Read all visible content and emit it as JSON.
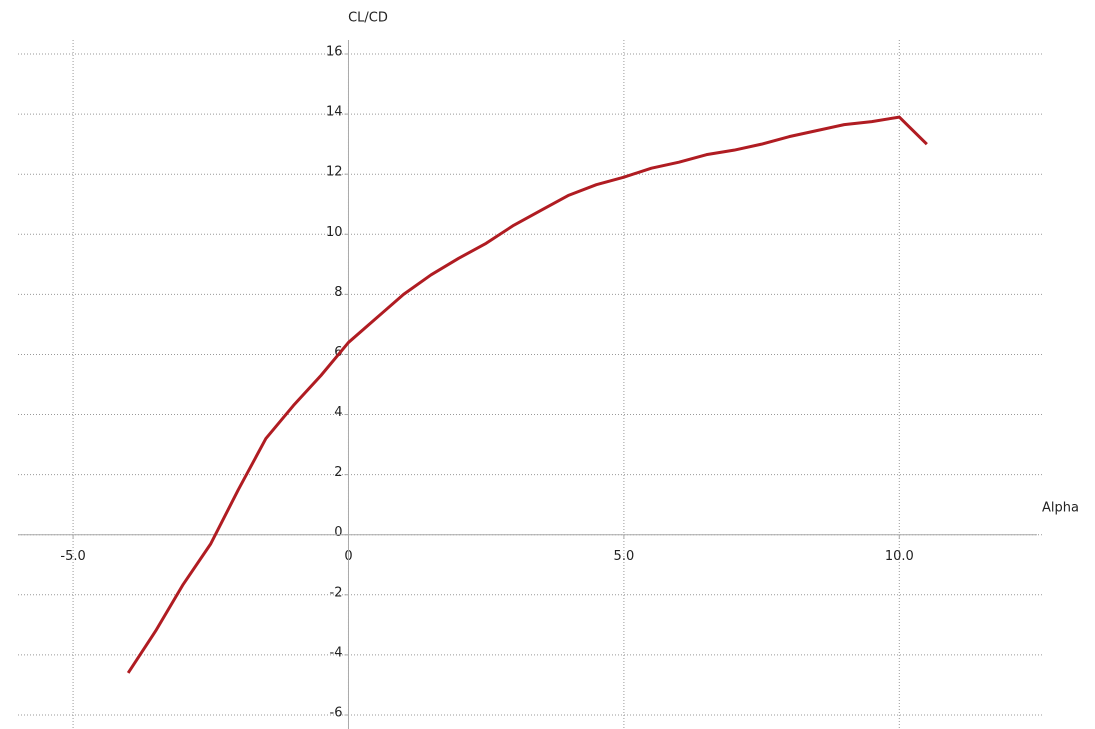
{
  "chart_data": {
    "type": "line",
    "x_label": "Alpha",
    "y_label": "CL/CD",
    "x": [
      -4.0,
      -3.5,
      -3.0,
      -2.5,
      -2.0,
      -1.5,
      -1.0,
      -0.5,
      0,
      0.5,
      1.0,
      1.5,
      2.0,
      2.5,
      3.0,
      3.5,
      4.0,
      4.5,
      5.0,
      5.5,
      6.0,
      6.5,
      7.0,
      7.5,
      8.0,
      8.5,
      9.0,
      9.5,
      10.0,
      10.5
    ],
    "series": [
      {
        "name": "CL/CD",
        "color": "#b01c22",
        "values": [
          -4.6,
          -3.2,
          -1.65,
          -0.3,
          1.5,
          3.2,
          4.3,
          5.3,
          6.4,
          7.2,
          8.0,
          8.65,
          9.2,
          9.7,
          10.3,
          10.8,
          11.3,
          11.65,
          11.9,
          12.2,
          12.4,
          12.65,
          12.8,
          13.0,
          13.25,
          13.45,
          13.65,
          13.75,
          13.9,
          13.0
        ]
      }
    ],
    "xlim": [
      -6,
      12.5
    ],
    "ylim": [
      -6.3,
      16.3
    ],
    "xticks": [
      {
        "value": -5,
        "label": "-5.0"
      },
      0,
      {
        "value": 5,
        "label": "5.0"
      },
      {
        "value": 10,
        "label": "10.0"
      }
    ],
    "yticks": [
      -6,
      -4,
      -2,
      0,
      2,
      4,
      6,
      8,
      10,
      12,
      14,
      16
    ],
    "grid": true
  }
}
